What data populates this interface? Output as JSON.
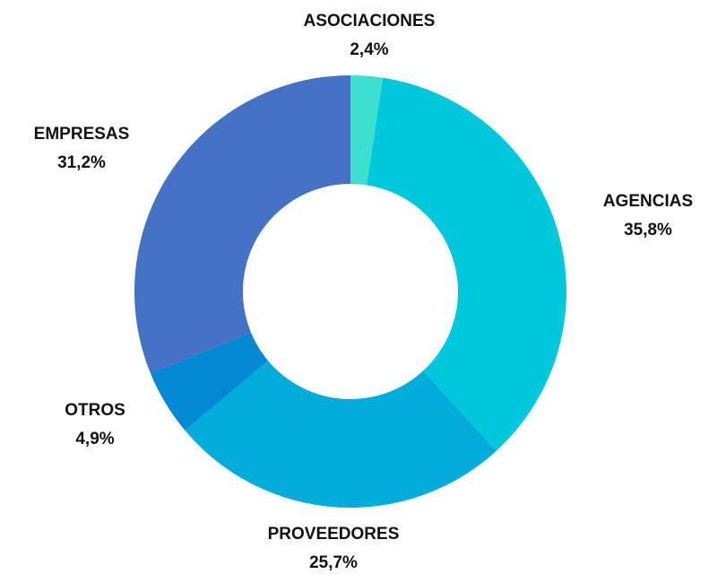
{
  "chart_data": {
    "type": "pie",
    "categories": [
      "ASOCIACIONES",
      "AGENCIAS",
      "PROVEEDORES",
      "OTROS",
      "EMPRESAS"
    ],
    "values": [
      2.4,
      35.8,
      25.7,
      4.9,
      31.2
    ],
    "value_labels": [
      "2,4%",
      "35,8%",
      "25,7%",
      "4,9%",
      "31,2%"
    ],
    "colors": [
      "#3de0d0",
      "#00c8dc",
      "#00acd9",
      "#0388d4",
      "#4472c4"
    ]
  }
}
